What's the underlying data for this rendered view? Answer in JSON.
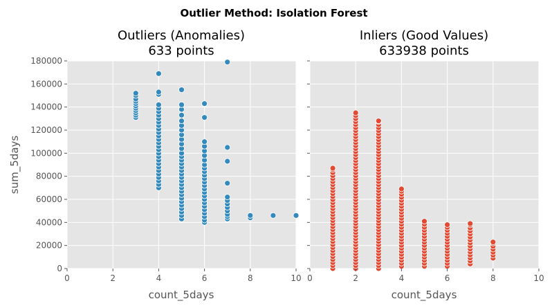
{
  "suptitle": "Outlier Method: Isolation Forest",
  "chart_data": [
    {
      "type": "scatter",
      "title": "Outliers (Anomalies)",
      "subtitle": "633 points",
      "xlabel": "count_5days",
      "ylabel": "sum_5days",
      "xlim": [
        0,
        10
      ],
      "ylim": [
        0,
        180000
      ],
      "xticks": [
        "0",
        "2",
        "4",
        "6",
        "8",
        "10"
      ],
      "yticks": [
        "0",
        "20000",
        "40000",
        "60000",
        "80000",
        "100000",
        "120000",
        "140000",
        "160000",
        "180000"
      ],
      "grid": true,
      "color": "#348abd",
      "series": [
        {
          "x": 3,
          "y": [
            131000,
            133000,
            135000,
            137000,
            139000,
            141000,
            143000,
            145000,
            147000,
            150000,
            152000
          ]
        },
        {
          "x": 4,
          "y": [
            70000,
            73000,
            76000,
            79000,
            82000,
            85000,
            88000,
            91000,
            94000,
            97000,
            100000,
            103000,
            106000,
            109000,
            112000,
            115000,
            118000,
            121000,
            124000,
            127000,
            130000,
            133000,
            136000,
            139000,
            142000,
            151000,
            153000,
            169000
          ]
        },
        {
          "x": 5,
          "y": [
            43000,
            46000,
            49000,
            52000,
            55000,
            58000,
            61000,
            64000,
            67000,
            70000,
            73000,
            76000,
            79000,
            82000,
            85000,
            88000,
            91000,
            94000,
            97000,
            100000,
            104000,
            108000,
            112000,
            116000,
            120000,
            124000,
            128000,
            133000,
            138000,
            142000,
            155000
          ]
        },
        {
          "x": 6,
          "y": [
            40000,
            42000,
            45000,
            48000,
            51000,
            54000,
            57000,
            60000,
            63000,
            66000,
            69000,
            72000,
            75000,
            78000,
            81000,
            84000,
            87000,
            90000,
            94000,
            98000,
            102000,
            106000,
            110000,
            131000,
            143000
          ]
        },
        {
          "x": 7,
          "y": [
            43000,
            45000,
            47000,
            50000,
            53000,
            56000,
            59000,
            62000,
            74000,
            93000,
            105000,
            179000
          ]
        },
        {
          "x": 8,
          "y": [
            44000,
            46000
          ]
        },
        {
          "x": 9,
          "y": [
            46000
          ]
        },
        {
          "x": 10,
          "y": [
            46000
          ]
        }
      ]
    },
    {
      "type": "scatter",
      "title": "Inliers (Good Values)",
      "subtitle": "633938 points",
      "xlabel": "count_5days",
      "ylabel": "",
      "xlim": [
        0,
        10
      ],
      "ylim": [
        0,
        180000
      ],
      "xticks": [
        "0",
        "2",
        "4",
        "6",
        "8",
        "10"
      ],
      "grid": true,
      "color": "#e24a33",
      "series": [
        {
          "x": 1,
          "ymin": 0,
          "ymax": 87000
        },
        {
          "x": 2,
          "ymin": 0,
          "ymax": 135000
        },
        {
          "x": 3,
          "ymin": 0,
          "ymax": 128000
        },
        {
          "x": 4,
          "ymin": 2000,
          "ymax": 69000
        },
        {
          "x": 5,
          "ymin": 2000,
          "ymax": 41000
        },
        {
          "x": 6,
          "ymin": 2000,
          "ymax": 38000
        },
        {
          "x": 7,
          "ymin": 4000,
          "ymax": 39000
        },
        {
          "x": 8,
          "ymin": 9000,
          "ymax": 23000
        }
      ]
    }
  ]
}
